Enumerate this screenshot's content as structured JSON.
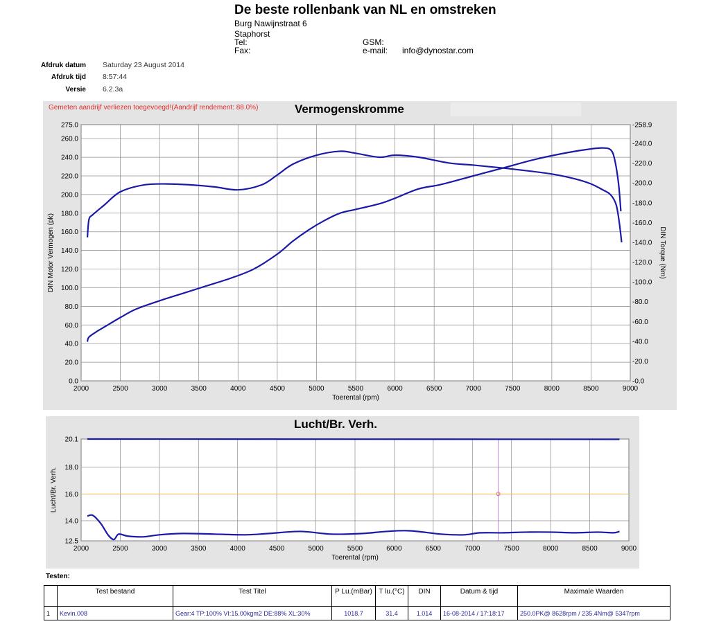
{
  "header": {
    "title": "De beste rollenbank van NL en omstreken",
    "address": "Burg Nawijnstraat 6",
    "city": "Staphorst",
    "tel_label": "Tel:",
    "fax_label": "Fax:",
    "gsm_label": "GSM:",
    "email_label": "e-mail:",
    "email": "info@dynostar.com"
  },
  "meta": {
    "date_label": "Afdruk datum",
    "date_value": "Saturday 23 August 2014",
    "time_label": "Afdruk tijd",
    "time_value": "8:57:44",
    "version_label": "Versie",
    "version_value": "6.2.3a"
  },
  "chart_data": [
    {
      "type": "line",
      "title": "Vermogenskromme",
      "annotation": "Gemeten aandrijf verliezen toegevoegd!(Aandrijf rendement: 88.0%)",
      "xlabel": "Toerental (rpm)",
      "ylabel": "DIN Motor Vermogen (pk)",
      "y2label": "DIN Torque (Nm)",
      "xlim": [
        2000,
        9000
      ],
      "ylim": [
        0,
        275
      ],
      "y2lim": [
        0,
        258.9
      ],
      "grid": true,
      "x_ticks": [
        "2000",
        "2500",
        "3000",
        "3500",
        "4000",
        "4500",
        "5000",
        "5500",
        "6000",
        "6500",
        "7000",
        "7500",
        "8000",
        "8500",
        "9000"
      ],
      "y_ticks": [
        "0.0",
        "20.0",
        "40.0",
        "60.0",
        "80.0",
        "100.0",
        "120.0",
        "140.0",
        "160.0",
        "180.0",
        "200.0",
        "220.0",
        "240.0",
        "260.0",
        "275.0"
      ],
      "y2_ticks": [
        "0.0",
        "20.0",
        "40.0",
        "60.0",
        "80.0",
        "100.0",
        "120.0",
        "140.0",
        "160.0",
        "180.0",
        "200.0",
        "220.0",
        "240.0",
        "258.9"
      ],
      "color": "#1a1aa6",
      "series": [
        {
          "axis": "left",
          "x": [
            2080,
            2100,
            2200,
            2300,
            2500,
            2700,
            3000,
            3300,
            3600,
            3900,
            4200,
            4500,
            4700,
            4900,
            5100,
            5300,
            5500,
            5800,
            6000,
            6300,
            6600,
            7000,
            7400,
            7800,
            8200,
            8500,
            8650,
            8750,
            8800,
            8850,
            8880
          ],
          "values": [
            42,
            47,
            53,
            58,
            68,
            77,
            86,
            94,
            102,
            110,
            120,
            136,
            150,
            162,
            172,
            180,
            184,
            190,
            196,
            206,
            211,
            220,
            229,
            238,
            245,
            249,
            250,
            248,
            238,
            212,
            182
          ]
        },
        {
          "axis": "right",
          "x": [
            2080,
            2100,
            2150,
            2300,
            2500,
            2800,
            3100,
            3400,
            3700,
            4000,
            4300,
            4500,
            4700,
            5000,
            5300,
            5500,
            5800,
            6000,
            6300,
            6700,
            7000,
            7500,
            8000,
            8300,
            8500,
            8650,
            8750,
            8820,
            8860,
            8890
          ],
          "values": [
            145,
            163,
            168,
            178,
            191,
            198,
            199,
            198,
            196,
            193,
            198,
            208,
            219,
            228,
            232,
            230,
            226,
            228,
            226,
            220,
            218,
            214,
            209,
            204,
            199,
            193,
            188,
            178,
            160,
            140
          ]
        }
      ]
    },
    {
      "type": "line",
      "title": "Lucht/Br. Verh.",
      "xlabel": "Toerental (rpm)",
      "ylabel": "Lucht/Br. Verh.",
      "xlim": [
        2000,
        9000
      ],
      "ylim": [
        12.5,
        20.1
      ],
      "grid": true,
      "reference_line": 16.0,
      "x_ticks": [
        "2000",
        "2500",
        "3000",
        "3500",
        "4000",
        "4500",
        "5000",
        "5500",
        "6000",
        "6500",
        "7000",
        "7500",
        "8000",
        "8500",
        "9000"
      ],
      "y_ticks": [
        "12.5",
        "14.0",
        "16.0",
        "18.0",
        "20.1"
      ],
      "color": "#1a1aa6",
      "series": [
        {
          "x": [
            2080,
            8880
          ],
          "values": [
            20.1,
            20.08
          ]
        },
        {
          "x": [
            2080,
            2150,
            2250,
            2350,
            2420,
            2480,
            2600,
            2800,
            3000,
            3300,
            3700,
            4100,
            4400,
            4800,
            5200,
            5600,
            5900,
            6200,
            6600,
            6900,
            7100,
            7400,
            7700,
            8000,
            8300,
            8600,
            8800,
            8880
          ],
          "values": [
            14.35,
            14.4,
            13.8,
            12.9,
            12.6,
            13.0,
            12.85,
            12.8,
            12.95,
            13.05,
            13.0,
            12.95,
            13.05,
            13.2,
            13.0,
            13.05,
            13.2,
            13.25,
            13.0,
            12.95,
            13.1,
            13.1,
            13.15,
            13.15,
            13.1,
            13.15,
            13.1,
            13.2
          ]
        }
      ]
    }
  ],
  "tests": {
    "label": "Testen:",
    "columns": [
      "",
      "Test bestand",
      "Test Titel",
      "P Lu.(mBar)",
      "T lu.(°C)",
      "DIN",
      "Datum & tijd",
      "Maximale Waarden"
    ],
    "rows": [
      [
        "1",
        "Kevin.008",
        "Gear:4 TP:100% VI:15.00kgm2 DE:88% XL:30%",
        "1018.7",
        "31.4",
        "1.014",
        "16-08-2014 / 17:18:17",
        "250.0PK@ 8628rpm / 235.4Nm@ 5347rpm"
      ]
    ]
  }
}
